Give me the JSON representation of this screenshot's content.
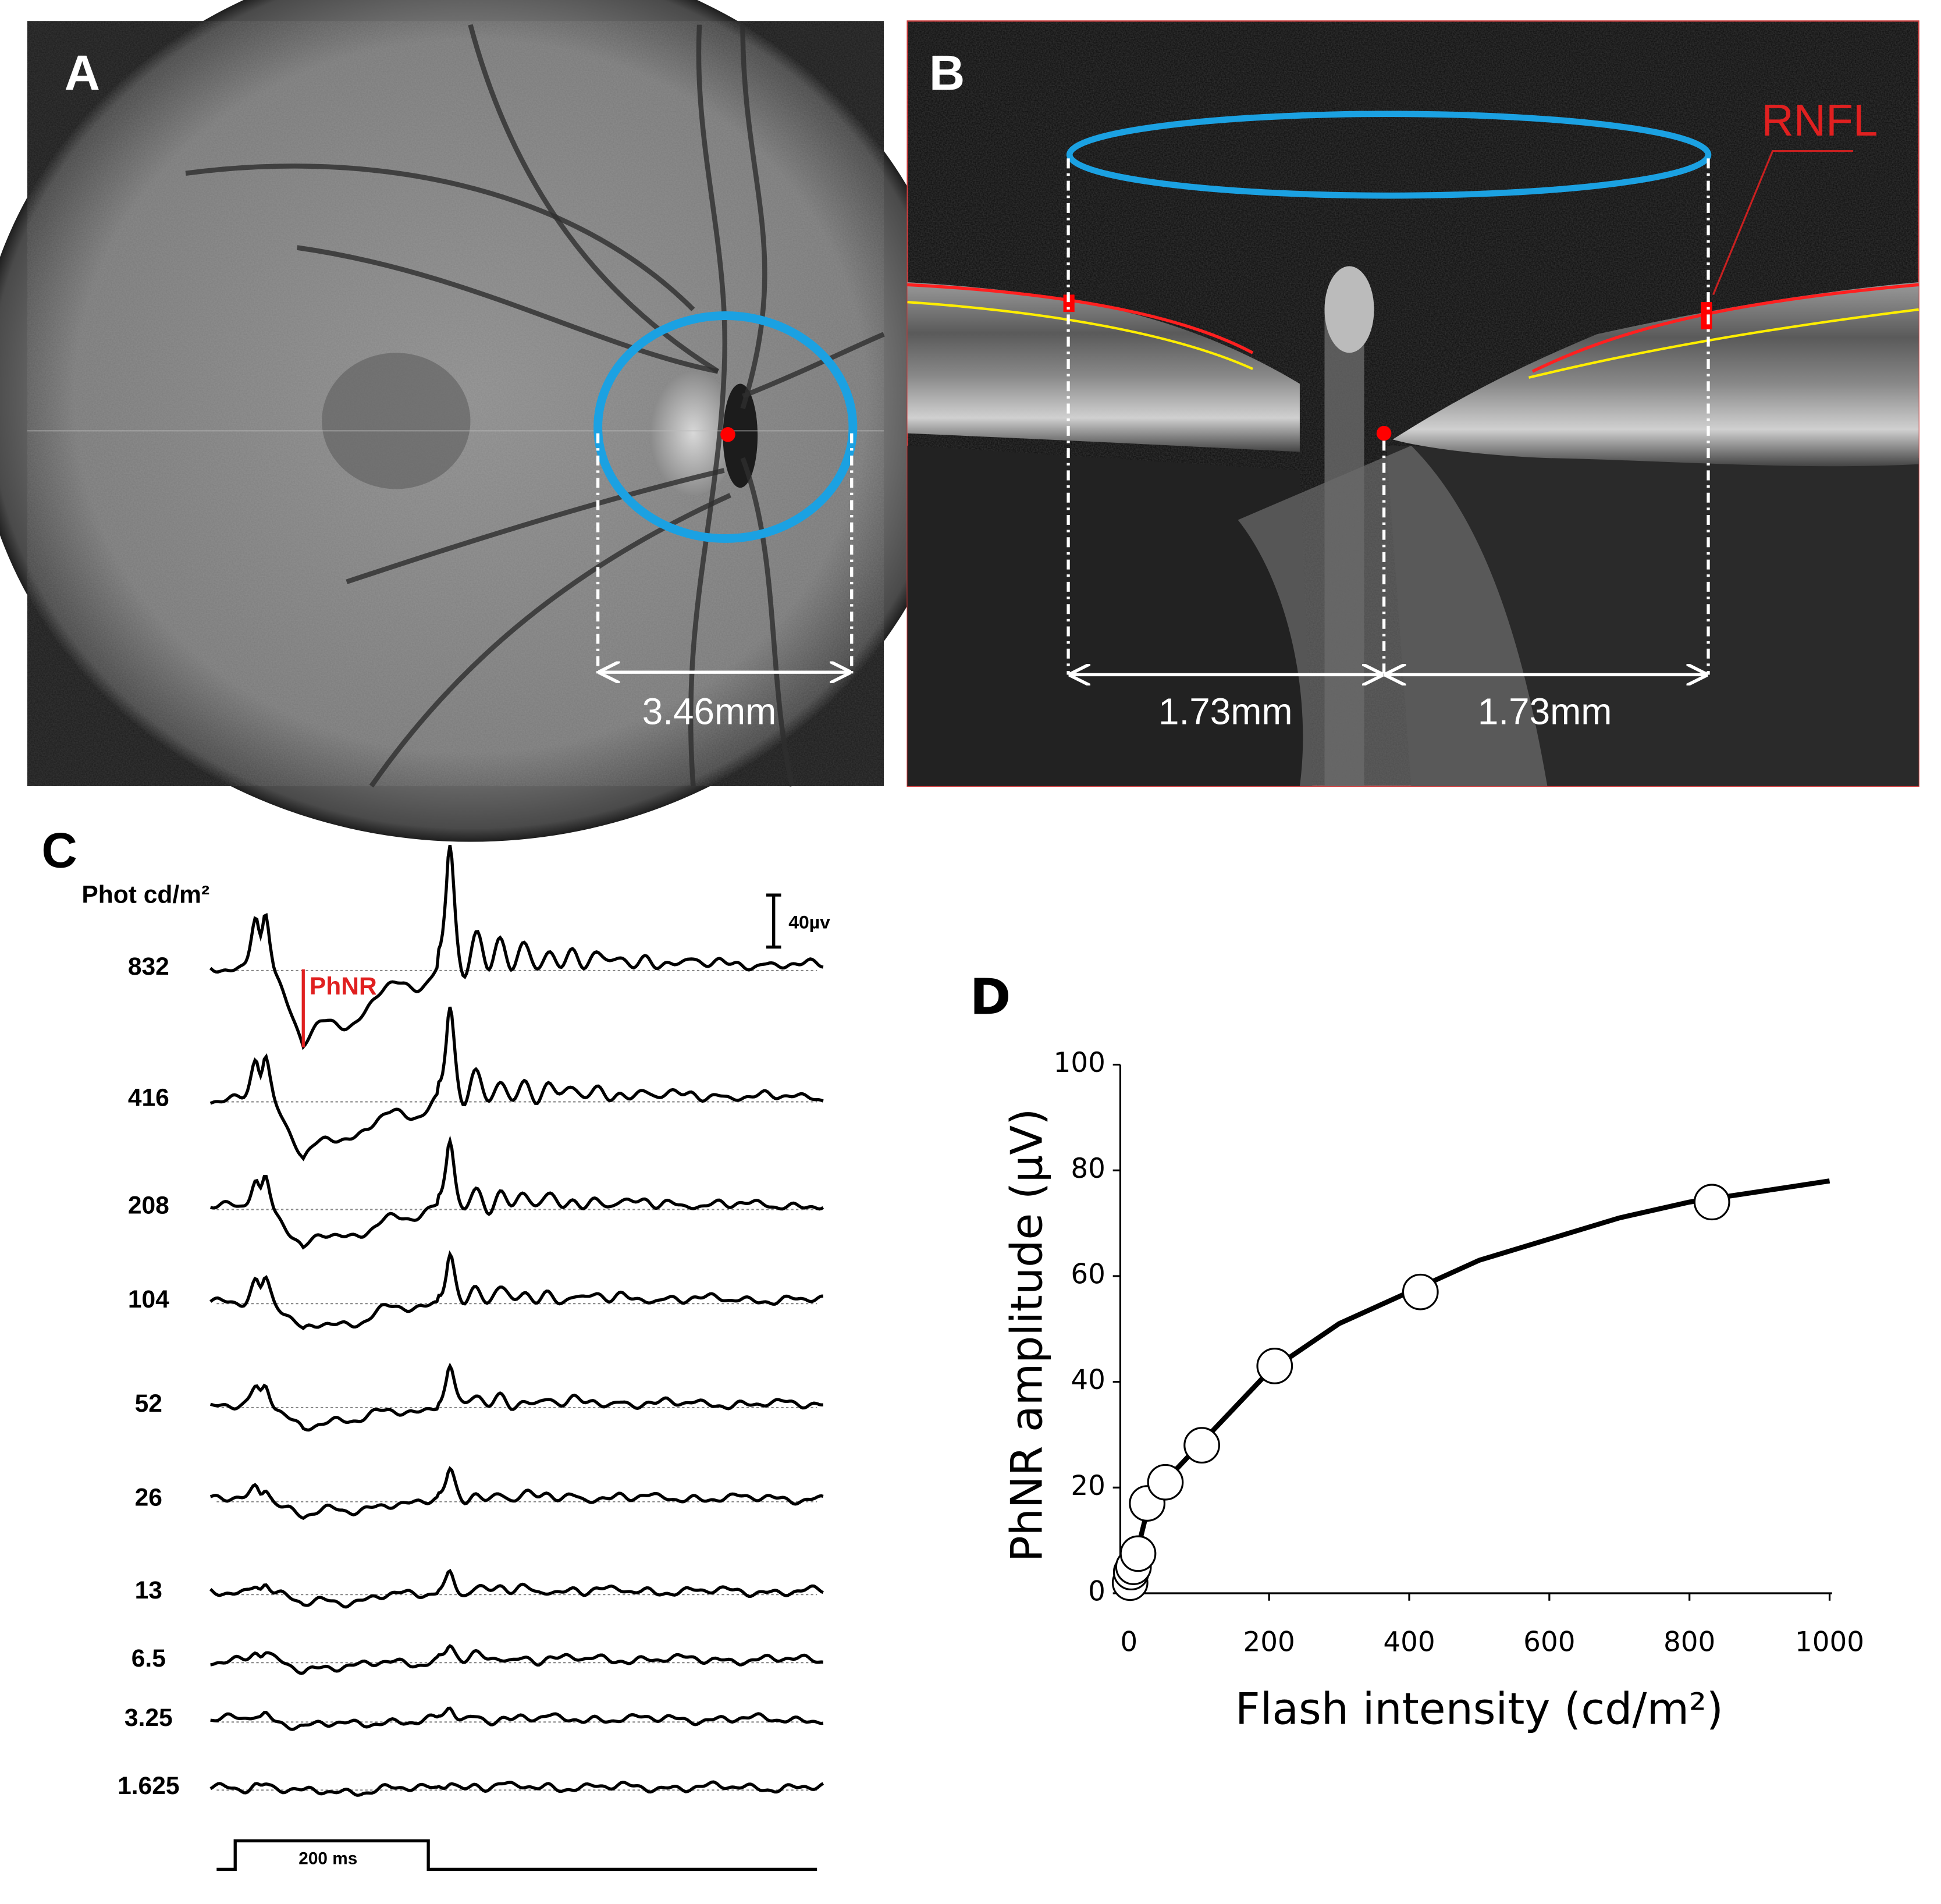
{
  "panel_a": {
    "label": "A",
    "measure": "3.46mm"
  },
  "panel_b": {
    "label": "B",
    "measure_left": "1.73mm",
    "measure_right": "1.73mm",
    "layer": "RNFL"
  },
  "panel_c": {
    "label": "C",
    "unit_label": "Phot cd/m²",
    "intensities": [
      832,
      416,
      208,
      104,
      52,
      26,
      13,
      6.5,
      3.25,
      1.625
    ],
    "marker": "PhNR",
    "scale_bar": "40µv",
    "stimulus": "200 ms"
  },
  "chart_data": {
    "type": "scatter",
    "label": "D",
    "x_label": "Flash intensity (cd/m²)",
    "y_label": "PhNR amplitude (µV)",
    "xlim": [
      0,
      1000
    ],
    "xticks": [
      0,
      200,
      400,
      600,
      800,
      1000
    ],
    "ylim": [
      0,
      100
    ],
    "yticks": [
      0,
      20,
      40,
      60,
      80,
      100
    ],
    "grid": false,
    "series": [
      {
        "type": "scatter",
        "color": "#ffffff",
        "x": [
          1.625,
          3.25,
          6.5,
          13,
          26,
          52,
          104,
          208,
          416,
          832
        ],
        "values": [
          2,
          4,
          5,
          7.5,
          17,
          21,
          28,
          43,
          57,
          74
        ]
      },
      {
        "type": "line",
        "color": "#000000",
        "x": [
          0,
          10,
          25,
          50,
          100,
          200,
          300,
          400,
          500,
          600,
          700,
          800,
          900,
          1000
        ],
        "values": [
          0,
          7,
          15,
          21,
          28,
          42,
          51,
          57,
          63,
          67,
          71,
          74,
          76,
          78
        ]
      }
    ]
  }
}
